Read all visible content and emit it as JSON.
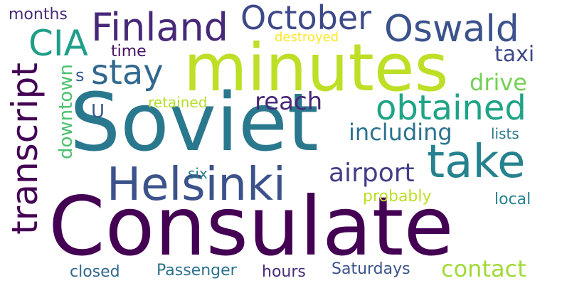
{
  "words": [
    {
      "text": "Consulate",
      "color": "#440154"
    },
    {
      "text": "Soviet",
      "color": "#2a788e"
    },
    {
      "text": "minutes",
      "color": "#bddf26"
    },
    {
      "text": "Helsinki",
      "color": "#3b528b"
    },
    {
      "text": "take",
      "color": "#26828e"
    },
    {
      "text": "Finland",
      "color": "#482878"
    },
    {
      "text": "October",
      "color": "#3e4989"
    },
    {
      "text": "Oswald",
      "color": "#3b528b"
    },
    {
      "text": "obtained",
      "color": "#20a386"
    },
    {
      "text": "stay",
      "color": "#31688e"
    },
    {
      "text": "CIA",
      "color": "#1f9e89"
    },
    {
      "text": "transcript",
      "color": "#440154"
    },
    {
      "text": "airport",
      "color": "#433e85"
    },
    {
      "text": "including",
      "color": "#2c728e"
    },
    {
      "text": "reach",
      "color": "#482878"
    },
    {
      "text": "drive",
      "color": "#75d054"
    },
    {
      "text": "taxi",
      "color": "#3e4989"
    },
    {
      "text": "contact",
      "color": "#a0da39"
    },
    {
      "text": "downtown",
      "color": "#4ac16d"
    },
    {
      "text": "hours",
      "color": "#472d7b"
    },
    {
      "text": "Saturdays",
      "color": "#3b528b"
    },
    {
      "text": "Passenger",
      "color": "#2c728e"
    },
    {
      "text": "closed",
      "color": "#31688e"
    },
    {
      "text": "probably",
      "color": "#bddf26"
    },
    {
      "text": "local",
      "color": "#26828e"
    },
    {
      "text": "retained",
      "color": "#b5de2b"
    },
    {
      "text": "lists",
      "color": "#2a788e"
    },
    {
      "text": "time",
      "color": "#471164"
    },
    {
      "text": "months",
      "color": "#482878"
    },
    {
      "text": "destroyed",
      "color": "#fde725"
    },
    {
      "text": "six",
      "color": "#277f8e"
    },
    {
      "text": "s",
      "color": "#38598c"
    },
    {
      "text": "U",
      "color": "#38598c"
    }
  ]
}
